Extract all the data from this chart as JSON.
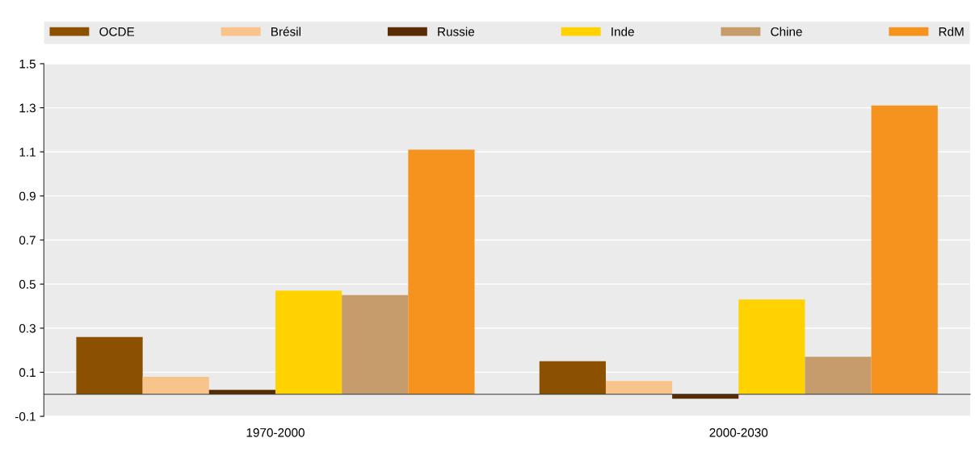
{
  "chart_data": {
    "type": "bar",
    "categories": [
      "1970-2000",
      "2000-2030"
    ],
    "series": [
      {
        "name": "OCDE",
        "color": "#8b5000",
        "values": [
          0.26,
          0.15
        ]
      },
      {
        "name": "Brésil",
        "color": "#f9c48c",
        "values": [
          0.08,
          0.06
        ]
      },
      {
        "name": "Russie",
        "color": "#582c00",
        "values": [
          0.02,
          -0.02
        ]
      },
      {
        "name": "Inde",
        "color": "#ffd200",
        "values": [
          0.47,
          0.43
        ]
      },
      {
        "name": "Chine",
        "color": "#c69c6d",
        "values": [
          0.45,
          0.17
        ]
      },
      {
        "name": "RdM",
        "color": "#f6921e",
        "values": [
          1.11,
          1.31
        ]
      }
    ],
    "ylim": [
      -0.1,
      1.5
    ],
    "yticks": [
      -0.1,
      0.1,
      0.3,
      0.5,
      0.7,
      0.9,
      1.1,
      1.3,
      1.5
    ],
    "grid": "y",
    "legend": "top"
  }
}
